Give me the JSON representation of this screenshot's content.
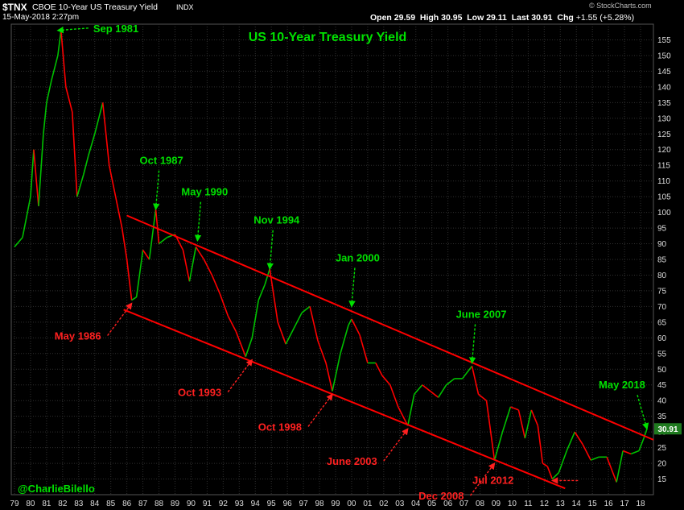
{
  "header": {
    "symbol": "$TNX",
    "name": "CBOE 10-Year US Treasury Yield",
    "exchange": "INDX",
    "date": "15-May-2018 2:27pm",
    "open_label": "Open",
    "open": "29.59",
    "high_label": "High",
    "high": "30.95",
    "low_label": "Low",
    "low": "29.11",
    "last_label": "Last",
    "last": "30.91",
    "chg_label": "Chg",
    "chg": "+1.55 (+5.28%)",
    "watermark": "© StockCharts.com"
  },
  "chart_data": {
    "type": "line",
    "title": "US 10-Year Treasury Yield",
    "credit": "@CharlieBilello",
    "ylim": [
      10,
      160
    ],
    "y_ticks": [
      15,
      20,
      25,
      30,
      35,
      40,
      45,
      50,
      55,
      60,
      65,
      70,
      75,
      80,
      85,
      90,
      95,
      100,
      105,
      110,
      115,
      120,
      125,
      130,
      135,
      140,
      145,
      150,
      155
    ],
    "xlim": [
      1978.8,
      2018.8
    ],
    "x_ticks": [
      "79",
      "80",
      "81",
      "82",
      "83",
      "84",
      "85",
      "86",
      "87",
      "88",
      "89",
      "90",
      "91",
      "92",
      "93",
      "94",
      "95",
      "96",
      "97",
      "98",
      "99",
      "00",
      "01",
      "02",
      "03",
      "04",
      "05",
      "06",
      "07",
      "08",
      "09",
      "10",
      "11",
      "12",
      "13",
      "14",
      "15",
      "16",
      "17",
      "18"
    ],
    "last_value_label": "30.91",
    "series": [
      {
        "x": [
          1979.0,
          1979.5,
          1980.0,
          1980.2,
          1980.5,
          1980.8,
          1981.0,
          1981.3,
          1981.7,
          1981.9,
          1982.2,
          1982.6,
          1982.9,
          1983.3,
          1983.6,
          1984.0,
          1984.5,
          1984.9,
          1985.3,
          1985.7,
          1986.0,
          1986.3,
          1986.6,
          1987.0,
          1987.4,
          1987.8,
          1988.0,
          1988.5,
          1989.0,
          1989.5,
          1989.9,
          1990.3,
          1990.8,
          1991.3,
          1991.8,
          1992.3,
          1992.8,
          1993.4,
          1993.8,
          1994.2,
          1994.6,
          1994.9,
          1995.4,
          1995.9,
          1996.4,
          1996.9,
          1997.4,
          1997.9,
          1998.4,
          1998.8,
          1999.3,
          1999.8,
          2000.0,
          2000.5,
          2001.0,
          2001.5,
          2001.9,
          2002.4,
          2002.9,
          2003.5,
          2003.9,
          2004.4,
          2004.9,
          2005.4,
          2005.9,
          2006.4,
          2006.9,
          2007.5,
          2007.9,
          2008.4,
          2008.9,
          2009.4,
          2009.9,
          2010.4,
          2010.8,
          2011.2,
          2011.6,
          2011.9,
          2012.2,
          2012.5,
          2012.9,
          2013.4,
          2013.9,
          2014.4,
          2014.9,
          2015.4,
          2015.9,
          2016.5,
          2016.9,
          2017.4,
          2017.9,
          2018.2,
          2018.4
        ],
        "y": [
          89,
          92,
          105,
          120,
          102,
          125,
          135,
          142,
          150,
          158,
          140,
          132,
          105,
          112,
          118,
          125,
          135,
          115,
          105,
          95,
          85,
          72,
          73,
          88,
          85,
          101,
          90,
          92,
          93,
          88,
          78,
          89,
          85,
          80,
          74,
          67,
          62,
          54,
          60,
          72,
          77,
          82,
          65,
          58,
          63,
          68,
          70,
          59,
          52,
          43,
          55,
          64,
          66,
          61,
          52,
          52,
          48,
          45,
          38,
          32,
          42,
          45,
          43,
          41,
          45,
          47,
          47,
          51,
          42,
          40,
          21,
          30,
          38,
          37,
          28,
          37,
          32,
          20,
          19,
          15,
          17,
          24,
          30,
          26,
          21,
          22,
          22,
          14,
          24,
          23,
          24,
          28,
          31
        ]
      }
    ],
    "upper_channel": {
      "x": [
        1986.0,
        2018.8
      ],
      "y": [
        99,
        27.5
      ]
    },
    "lower_channel": {
      "x": [
        1985.8,
        2013.3
      ],
      "y": [
        69,
        12
      ]
    },
    "annotations": [
      {
        "text": "Sep 1981",
        "color": "#00e000",
        "date": 1981.7,
        "value": 158,
        "dir": "right"
      },
      {
        "text": "Oct 1987",
        "color": "#00e000",
        "date": 1987.8,
        "value": 101,
        "dir": "up"
      },
      {
        "text": "May 1990",
        "color": "#00e000",
        "date": 1990.4,
        "value": 91,
        "dir": "up"
      },
      {
        "text": "Nov 1994",
        "color": "#00e000",
        "date": 1994.9,
        "value": 82,
        "dir": "up"
      },
      {
        "text": "Jan 2000",
        "color": "#00e000",
        "date": 2000.0,
        "value": 70,
        "dir": "up"
      },
      {
        "text": "June 2007",
        "color": "#00e000",
        "date": 2007.5,
        "value": 52,
        "dir": "up"
      },
      {
        "text": "May 2018",
        "color": "#00e000",
        "date": 2018.4,
        "value": 31,
        "dir": "up"
      },
      {
        "text": "May 1986",
        "color": "#ff2020",
        "date": 1986.3,
        "value": 71,
        "dir": "down"
      },
      {
        "text": "Oct 1993",
        "color": "#ff2020",
        "date": 1993.8,
        "value": 53,
        "dir": "down"
      },
      {
        "text": "Oct 1998",
        "color": "#ff2020",
        "date": 1998.8,
        "value": 42,
        "dir": "down"
      },
      {
        "text": "June 2003",
        "color": "#ff2020",
        "date": 2003.5,
        "value": 31,
        "dir": "down"
      },
      {
        "text": "Dec 2008",
        "color": "#ff2020",
        "date": 2008.9,
        "value": 20,
        "dir": "down"
      },
      {
        "text": "Jul 2012",
        "color": "#ff2020",
        "date": 2012.5,
        "value": 14.5,
        "dir": "left"
      }
    ],
    "colors": {
      "up": "#00c000",
      "down": "#ff0000",
      "channel": "#ff0000",
      "grid": "#303030",
      "title": "#00e000",
      "credit": "#00e000"
    }
  }
}
